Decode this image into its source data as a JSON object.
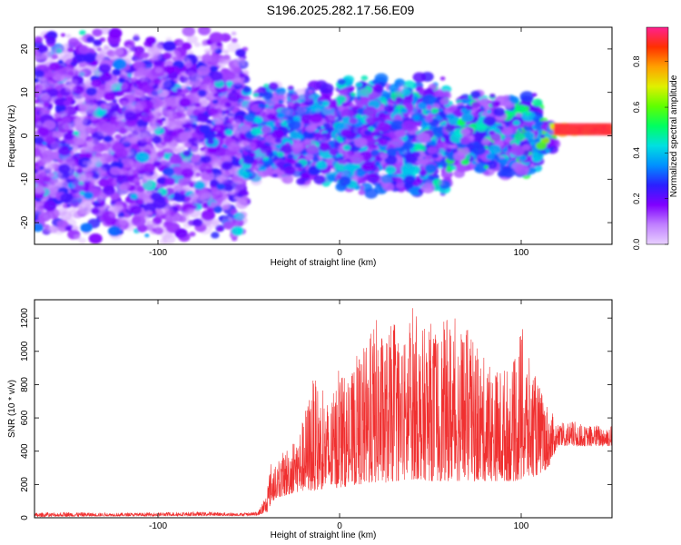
{
  "title": "S196.2025.282.17.56.E09",
  "colors": {
    "snr_line": "#f03030",
    "colorbar": [
      "#e8d0ff",
      "#c080ff",
      "#8000ff",
      "#2a20ff",
      "#0090ff",
      "#00e0e0",
      "#00ff60",
      "#60ff00",
      "#e0f000",
      "#ffa000",
      "#ff3000",
      "#ff2090"
    ]
  },
  "chart_data": [
    {
      "type": "heatmap",
      "name": "spectrogram",
      "xlabel": "Height of straight line (km)",
      "ylabel": "Frequency (Hz)",
      "xlim": [
        -168,
        150
      ],
      "ylim": [
        -25,
        25
      ],
      "xticks": [
        -100,
        0,
        100
      ],
      "xtick_labels": [
        "-100",
        "0",
        "100"
      ],
      "yticks": [
        -20,
        -10,
        0,
        10,
        20
      ],
      "ytick_labels": [
        "-20",
        "-10",
        "0",
        "10",
        "20"
      ],
      "colorbar": {
        "label": "Normalized spectral amplitude",
        "range": [
          0,
          0.95
        ],
        "ticks": [
          0.0,
          0.2,
          0.4,
          0.6,
          0.8
        ],
        "tick_labels": [
          "0.0",
          "0.2",
          "0.4",
          "0.6",
          "0.8"
        ]
      },
      "regions": [
        {
          "x": [
            -168,
            -52
          ],
          "freq_halfwidth": 25,
          "level": 0.12,
          "description": "broadband noise"
        },
        {
          "x": [
            -52,
            0
          ],
          "freq_halfwidth": 12,
          "level": 0.2
        },
        {
          "x": [
            0,
            60
          ],
          "freq_halfwidth": 14,
          "level": 0.22
        },
        {
          "x": [
            60,
            110
          ],
          "freq_halfwidth": 10,
          "level": 0.25
        },
        {
          "x": [
            110,
            118
          ],
          "freq_halfwidth": 4,
          "level": 0.3
        },
        {
          "x": [
            118,
            150
          ],
          "freq_center": 1.5,
          "freq_halfwidth": 2,
          "level": 0.9
        }
      ]
    },
    {
      "type": "line",
      "name": "snr",
      "xlabel": "Height of straight line (km)",
      "ylabel": "SNR (10 * v/v)",
      "xlim": [
        -168,
        150
      ],
      "ylim": [
        0,
        1310
      ],
      "xticks": [
        -100,
        0,
        100
      ],
      "xtick_labels": [
        "-100",
        "0",
        "100"
      ],
      "yticks": [
        0,
        200,
        400,
        600,
        800,
        1000,
        1200
      ],
      "ytick_labels": [
        "0",
        "200",
        "400",
        "600",
        "800",
        "1000",
        "1200"
      ],
      "series": [
        {
          "name": "SNR",
          "x": [
            -168,
            -150,
            -130,
            -110,
            -90,
            -70,
            -55,
            -45,
            -40,
            -38,
            -35,
            -30,
            -25,
            -20,
            -15,
            -10,
            -5,
            0,
            5,
            10,
            15,
            20,
            25,
            30,
            35,
            40,
            45,
            50,
            55,
            60,
            65,
            70,
            75,
            80,
            85,
            90,
            95,
            100,
            105,
            110,
            115,
            120,
            125,
            130,
            135,
            140,
            145,
            150
          ],
          "low": [
            5,
            8,
            10,
            10,
            12,
            12,
            12,
            14,
            30,
            80,
            120,
            130,
            150,
            160,
            160,
            170,
            175,
            180,
            190,
            200,
            200,
            210,
            210,
            220,
            220,
            230,
            230,
            220,
            220,
            220,
            220,
            220,
            220,
            220,
            220,
            220,
            220,
            220,
            240,
            260,
            300,
            430,
            430,
            430,
            430,
            430,
            430,
            430
          ],
          "high": [
            30,
            35,
            30,
            30,
            35,
            35,
            30,
            35,
            150,
            340,
            310,
            420,
            480,
            600,
            850,
            780,
            680,
            920,
            800,
            1000,
            1050,
            1210,
            1090,
            1190,
            1050,
            1310,
            1130,
            1180,
            1140,
            1220,
            1190,
            1150,
            1030,
            960,
            900,
            920,
            890,
            1170,
            930,
            800,
            680,
            560,
            580,
            580,
            550,
            560,
            560,
            560
          ]
        }
      ]
    }
  ]
}
